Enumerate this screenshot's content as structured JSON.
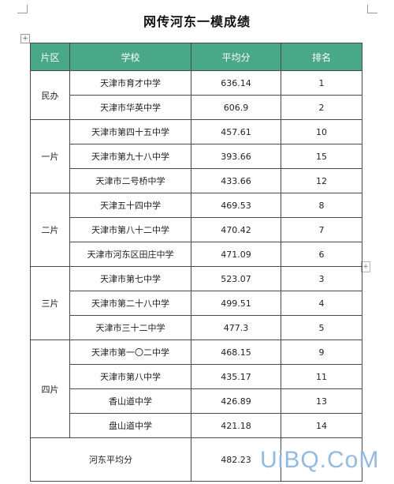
{
  "document": {
    "title": "网传河东一模成绩"
  },
  "controls": {
    "move_handle_symbol": "+",
    "add_row_symbol": "+"
  },
  "table": {
    "headers": {
      "district": "片区",
      "school": "学校",
      "average": "平均分",
      "rank": "排名"
    },
    "groups": [
      {
        "district": "民办",
        "rows": [
          {
            "school": "天津市育才中学",
            "average": "636.14",
            "rank": "1"
          },
          {
            "school": "天津市华英中学",
            "average": "606.9",
            "rank": "2"
          }
        ]
      },
      {
        "district": "一片",
        "rows": [
          {
            "school": "天津市第四十五中学",
            "average": "457.61",
            "rank": "10"
          },
          {
            "school": "天津市第九十八中学",
            "average": "393.66",
            "rank": "15"
          },
          {
            "school": "天津市二号桥中学",
            "average": "433.66",
            "rank": "12"
          }
        ]
      },
      {
        "district": "二片",
        "rows": [
          {
            "school": "天津五十四中学",
            "average": "469.53",
            "rank": "8"
          },
          {
            "school": "天津市第八十二中学",
            "average": "470.42",
            "rank": "7"
          },
          {
            "school": "天津市河东区田庄中学",
            "average": "471.09",
            "rank": "6"
          }
        ]
      },
      {
        "district": "三片",
        "rows": [
          {
            "school": "天津市第七中学",
            "average": "523.07",
            "rank": "3"
          },
          {
            "school": "天津市第二十八中学",
            "average": "499.51",
            "rank": "4"
          },
          {
            "school": "天津市三十二中学",
            "average": "477.3",
            "rank": "5"
          }
        ]
      },
      {
        "district": "四片",
        "rows": [
          {
            "school": "天津市第一〇二中学",
            "average": "468.15",
            "rank": "9"
          },
          {
            "school": "天津市第八中学",
            "average": "435.17",
            "rank": "11"
          },
          {
            "school": "香山道中学",
            "average": "426.89",
            "rank": "13"
          },
          {
            "school": "盘山道中学",
            "average": "421.18",
            "rank": "14"
          }
        ]
      }
    ],
    "summary": {
      "label": "河东平均分",
      "average": "482.23",
      "rank": ""
    }
  },
  "watermark": {
    "text": "UiBQ.CoM",
    "color": "#8fb7df"
  },
  "colors": {
    "header_background": "#48a888",
    "header_text": "#ffffff",
    "border": "#4a4a4a"
  }
}
